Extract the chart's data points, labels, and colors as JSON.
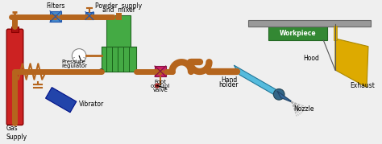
{
  "bg_color": "#efefef",
  "pipe_color": "#b5651d",
  "pipe_lw": 5,
  "gas_color": "#cc2222",
  "filter_color": "#4488cc",
  "mixer_color": "#44aa44",
  "vibrator_color": "#2244aa",
  "valve_color": "#cc2266",
  "holder_color": "#55bbdd",
  "nozzle_color": "#336699",
  "workpiece_color": "#338833",
  "exhaust_color": "#ddaa00",
  "table_color": "#999999",
  "hood_color": "#888888",
  "labels": {
    "filters": "Filters",
    "powder": "Powder  supply",
    "and_mixer": "and  mixer",
    "pressure": "Pressure",
    "regulator": "regulator",
    "gas_supply": "Gas\nSupply",
    "vibrator": "Vibrator",
    "foot": "Foot",
    "control": "control",
    "valve": "valve",
    "hand": "Hand",
    "holder": "holder",
    "nozzle": "Nozzle",
    "hood": "Hood",
    "exhaust": "Exhaust",
    "workpiece": "Workpiece"
  }
}
